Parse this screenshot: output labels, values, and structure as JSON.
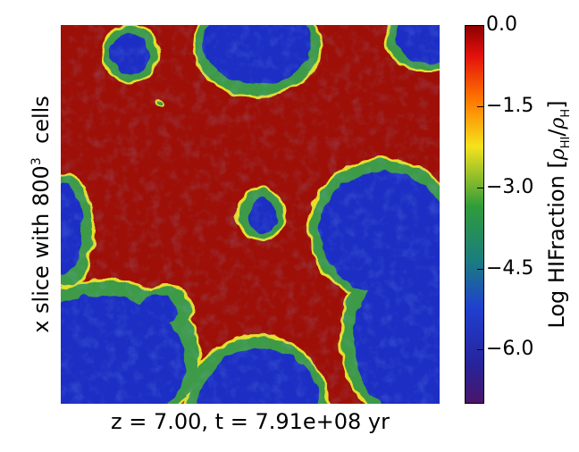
{
  "figure": {
    "ylabel_text": "x slice with 800",
    "ylabel_exp": "3",
    "ylabel_suffix": "  cells",
    "xlabel": "z = 7.00, t = 7.91e+08 yr",
    "colorbar_label_prefix": "Log HIFraction [",
    "colorbar_label_rho": "ρ",
    "colorbar_label_hi": "HI",
    "colorbar_label_slash": "/",
    "colorbar_label_rho2": "ρ",
    "colorbar_label_h": "H",
    "colorbar_label_suffix": "]",
    "colorbar_ticks": [
      {
        "label": "0.0",
        "value": 0.0
      },
      {
        "label": "−1.5",
        "value": -1.5
      },
      {
        "label": "−3.0",
        "value": -3.0
      },
      {
        "label": "−4.5",
        "value": -4.5
      },
      {
        "label": "−6.0",
        "value": -6.0
      }
    ],
    "colorbar_range": [
      -7.0,
      0.0
    ],
    "colors": {
      "neutral": "#9e0f07",
      "ionized": "#1f2fc4",
      "front_green": "#3c9a46",
      "front_yellow": "#e6e02a"
    }
  }
}
